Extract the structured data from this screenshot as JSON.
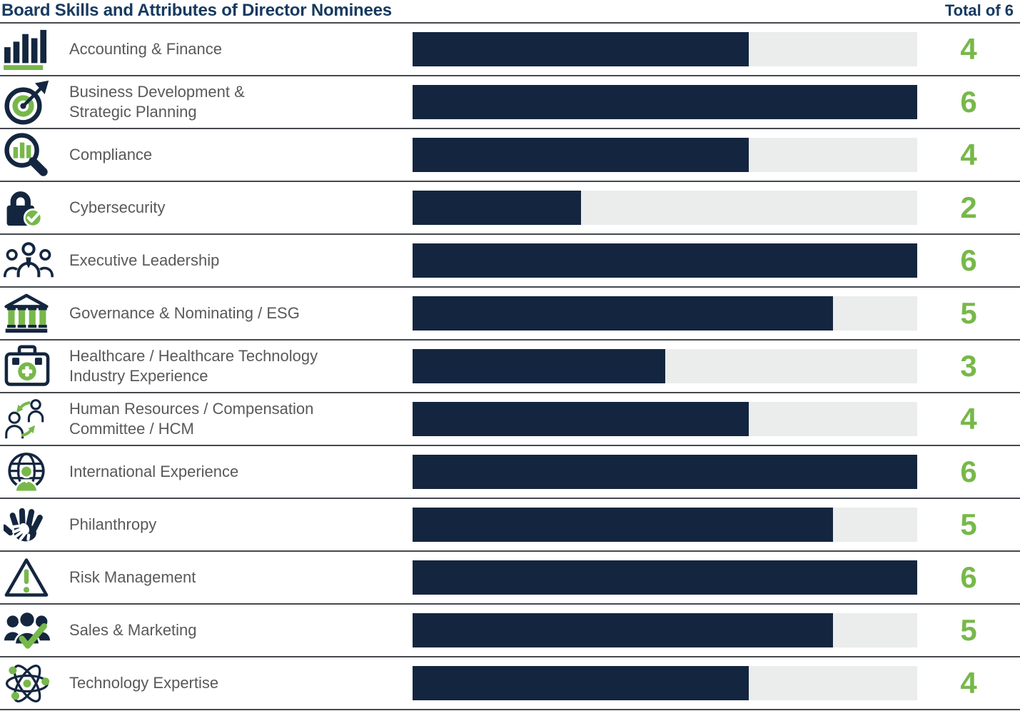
{
  "header": {
    "title": "Board Skills and Attributes of Director Nominees",
    "total_label": "Total of 6"
  },
  "chart_data": {
    "type": "bar",
    "orientation": "horizontal",
    "title": "Board Skills and Attributes of Director Nominees",
    "total_label": "Total of 6",
    "max": 6,
    "xlim": [
      0,
      6
    ],
    "grid": false,
    "legend": false,
    "categories": [
      "Accounting & Finance",
      "Business Development & Strategic Planning",
      "Compliance",
      "Cybersecurity",
      "Executive Leadership",
      "Governance & Nominating / ESG",
      "Healthcare / Healthcare Technology Industry Experience",
      "Human Resources / Compensation Committee / HCM",
      "International Experience",
      "Philanthropy",
      "Risk Management",
      "Sales & Marketing",
      "Technology Expertise"
    ],
    "values": [
      4,
      6,
      4,
      2,
      6,
      5,
      3,
      4,
      6,
      5,
      6,
      5,
      4
    ],
    "rows": [
      {
        "lines": [
          "Accounting & Finance"
        ],
        "icon": "bar-chart-icon",
        "value": 4
      },
      {
        "lines": [
          "Business Development &",
          "Strategic Planning"
        ],
        "icon": "target-arrow-icon",
        "value": 6
      },
      {
        "lines": [
          "Compliance"
        ],
        "icon": "magnifier-chart-icon",
        "value": 4
      },
      {
        "lines": [
          "Cybersecurity"
        ],
        "icon": "lock-check-icon",
        "value": 2
      },
      {
        "lines": [
          "Executive Leadership"
        ],
        "icon": "team-outline-icon",
        "value": 6
      },
      {
        "lines": [
          "Governance & Nominating / ESG"
        ],
        "icon": "bank-building-icon",
        "value": 5
      },
      {
        "lines": [
          "Healthcare / Healthcare Technology",
          "Industry Experience"
        ],
        "icon": "medical-bag-icon",
        "value": 3
      },
      {
        "lines": [
          "Human Resources / Compensation",
          "Committee / HCM"
        ],
        "icon": "people-swap-icon",
        "value": 4
      },
      {
        "lines": [
          "International Experience"
        ],
        "icon": "globe-person-icon",
        "value": 6
      },
      {
        "lines": [
          "Philanthropy"
        ],
        "icon": "helping-hand-icon",
        "value": 5
      },
      {
        "lines": [
          "Risk Management"
        ],
        "icon": "warning-triangle-icon",
        "value": 6
      },
      {
        "lines": [
          "Sales & Marketing"
        ],
        "icon": "people-check-icon",
        "value": 5
      },
      {
        "lines": [
          "Technology Expertise"
        ],
        "icon": "atom-icon",
        "value": 4
      }
    ],
    "colors": {
      "bar_fill": "#14263F",
      "bar_track": "#EBECEC",
      "value_text": "#77B84A",
      "title_text": "#173A60",
      "label_text": "#58595B",
      "icon_navy": "#14263F",
      "icon_green": "#77B84A"
    }
  }
}
